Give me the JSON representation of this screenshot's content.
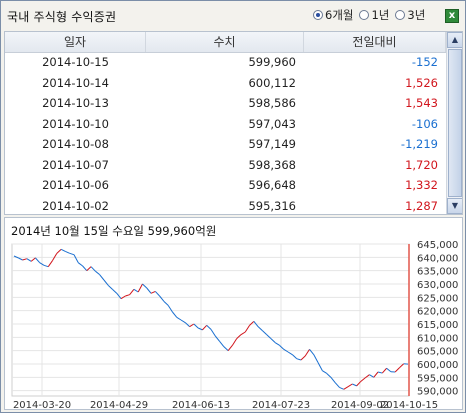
{
  "title": "국내 주식형 수익증권",
  "period_options": [
    {
      "label": "6개월",
      "selected": true
    },
    {
      "label": "1년",
      "selected": false
    },
    {
      "label": "3년",
      "selected": false
    }
  ],
  "excel_icon": "excel-export-icon",
  "table": {
    "headers": [
      "일자",
      "수치",
      "전일대비"
    ],
    "rows": [
      {
        "date": "2014-10-15",
        "value": "599,960",
        "change": "-152",
        "dir": "down"
      },
      {
        "date": "2014-10-14",
        "value": "600,112",
        "change": "1,526",
        "dir": "up"
      },
      {
        "date": "2014-10-13",
        "value": "598,586",
        "change": "1,543",
        "dir": "up"
      },
      {
        "date": "2014-10-10",
        "value": "597,043",
        "change": "-106",
        "dir": "down"
      },
      {
        "date": "2014-10-08",
        "value": "597,149",
        "change": "-1,219",
        "dir": "down"
      },
      {
        "date": "2014-10-07",
        "value": "598,368",
        "change": "1,720",
        "dir": "up"
      },
      {
        "date": "2014-10-06",
        "value": "596,648",
        "change": "1,332",
        "dir": "up"
      },
      {
        "date": "2014-10-02",
        "value": "595,316",
        "change": "1,287",
        "dir": "up"
      }
    ]
  },
  "chart_info": "2014년 10월 15일 수요일   599,960억원",
  "colors": {
    "up": "#d1151c",
    "down": "#1a6fd0",
    "grid": "#e4e4e4",
    "cursor": "#e2574c"
  },
  "chart_data": {
    "type": "line",
    "x_ticks": [
      "2014-03-20",
      "2014-04-29",
      "2014-06-13",
      "2014-07-23",
      "2014-09-02",
      "2014-10-15"
    ],
    "y_ticks": [
      "645,000",
      "640,000",
      "635,000",
      "630,000",
      "625,000",
      "620,000",
      "615,000",
      "610,000",
      "605,000",
      "600,000",
      "595,000",
      "590,000"
    ],
    "ylim": [
      588000,
      645000
    ],
    "grid": true,
    "series": [
      {
        "values": [
          640500,
          639800,
          639000,
          639500,
          638500,
          639800,
          638000,
          637000,
          636500,
          638800,
          641500,
          643000,
          642200,
          641500,
          641000,
          638000,
          636800,
          635000,
          636500,
          634800,
          633500,
          631500,
          629500,
          628000,
          626500,
          624500,
          625500,
          626000,
          628000,
          627000,
          630000,
          628500,
          626500,
          627200,
          625500,
          623500,
          622000,
          619500,
          617500,
          616500,
          615500,
          614000,
          615000,
          613500,
          612800,
          614500,
          613000,
          610500,
          608500,
          606500,
          605000,
          607000,
          609500,
          611000,
          612000,
          614500,
          616000,
          614000,
          612500,
          611000,
          609500,
          608000,
          607000,
          605500,
          604500,
          603500,
          602000,
          601500,
          603000,
          605500,
          603500,
          600500,
          597500,
          596500,
          595000,
          593000,
          591200,
          590500,
          591500,
          592500,
          591800,
          593500,
          594800,
          596000,
          595000,
          597000,
          596600,
          598400,
          597100,
          597000,
          598600,
          600100,
          599960
        ]
      }
    ]
  }
}
